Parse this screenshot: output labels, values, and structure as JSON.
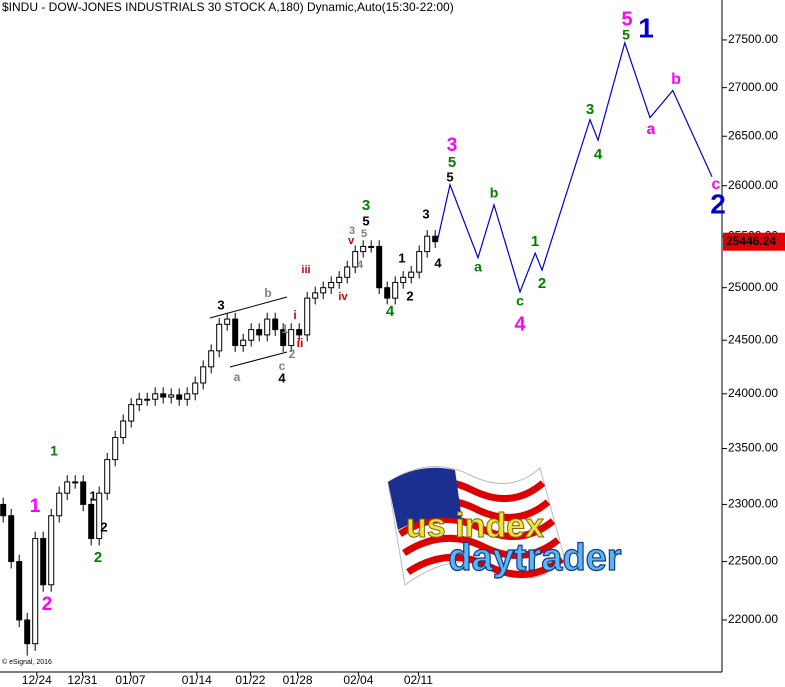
{
  "chart_data": {
    "type": "candlestick",
    "title": "$INDU - DOW-JONES INDUSTRIALS 30 STOCK A,180) Dynamic,Auto(15:30-22:00)",
    "copyright": "© eSignal, 2016",
    "log_scale": true,
    "ylim": [
      21564,
      27926
    ],
    "yticks": [
      {
        "value": 22000,
        "label": "22000.00"
      },
      {
        "value": 22500,
        "label": "22500.00"
      },
      {
        "value": 23000,
        "label": "23000.00"
      },
      {
        "value": 23500,
        "label": "23500.00"
      },
      {
        "value": 24000,
        "label": "24000.00"
      },
      {
        "value": 24500,
        "label": "24500.00"
      },
      {
        "value": 25000,
        "label": "25000.00"
      },
      {
        "value": 25500,
        "label": "25500.00"
      },
      {
        "value": 26000,
        "label": "26000.00"
      },
      {
        "value": 26500,
        "label": "26500.00"
      },
      {
        "value": 27000,
        "label": "27000.00"
      },
      {
        "value": 27500,
        "label": "27500.00"
      }
    ],
    "xlim": [
      -0.4,
      89.85
    ],
    "xticks": [
      {
        "value": 4.2,
        "label": "12/24"
      },
      {
        "value": 9.9,
        "label": "12/31"
      },
      {
        "value": 15.9,
        "label": "01/07"
      },
      {
        "value": 24.2,
        "label": "01/14"
      },
      {
        "value": 30.9,
        "label": "01/22"
      },
      {
        "value": 36.8,
        "label": "01/28"
      },
      {
        "value": 44.4,
        "label": "02/04"
      },
      {
        "value": 51.9,
        "label": "02/11"
      }
    ],
    "candle_color": "#000000",
    "open": [
      23000,
      22900,
      22500,
      22000,
      21800,
      22700,
      22300,
      22900,
      23100,
      23200,
      23200,
      23000,
      22700,
      23100,
      23400,
      23600,
      23750,
      23900,
      23950,
      23950,
      24000,
      23970,
      23990,
      23950,
      24000,
      24100,
      24250,
      24400,
      24650,
      24700,
      24450,
      24500,
      24600,
      24550,
      24700,
      24600,
      24450,
      24600,
      24550,
      24900,
      24950,
      25000,
      25050,
      25100,
      25200,
      25350,
      25400,
      25400,
      25000,
      24900,
      25050,
      25100,
      25150,
      25350,
      25500
    ],
    "high": [
      23060,
      22960,
      22560,
      22060,
      22760,
      22760,
      22960,
      23160,
      23260,
      23260,
      23260,
      23060,
      23160,
      23460,
      23660,
      23810,
      23960,
      24010,
      24010,
      24060,
      24060,
      24050,
      24050,
      24060,
      24160,
      24310,
      24460,
      24710,
      24760,
      24760,
      24560,
      24660,
      24660,
      24760,
      24760,
      24660,
      24660,
      24660,
      24960,
      25010,
      25060,
      25110,
      25160,
      25260,
      25410,
      25460,
      25460,
      25460,
      25060,
      25110,
      25160,
      25210,
      25410,
      25560,
      25560
    ],
    "low": [
      22840,
      22440,
      21940,
      21700,
      21740,
      22240,
      22240,
      22840,
      23040,
      23140,
      22940,
      22640,
      22640,
      23040,
      23340,
      23540,
      23690,
      23840,
      23890,
      23890,
      23910,
      23910,
      23890,
      23890,
      23940,
      24040,
      24190,
      24340,
      24590,
      24390,
      24390,
      24440,
      24490,
      24490,
      24540,
      24390,
      24390,
      24490,
      24490,
      24840,
      24890,
      24940,
      24990,
      25040,
      25140,
      25290,
      25340,
      24940,
      24840,
      24840,
      24990,
      25040,
      25090,
      25290,
      25386
    ],
    "close": [
      22900,
      22500,
      22000,
      21800,
      22700,
      22300,
      22900,
      23100,
      23200,
      23200,
      23000,
      22700,
      23100,
      23400,
      23600,
      23750,
      23900,
      23950,
      23950,
      24000,
      23970,
      23990,
      23950,
      24000,
      24100,
      24250,
      24400,
      24650,
      24700,
      24450,
      24500,
      24600,
      24550,
      24700,
      24600,
      24450,
      24600,
      24550,
      24900,
      24950,
      25000,
      25050,
      25100,
      25200,
      25350,
      25400,
      25400,
      25000,
      24900,
      25050,
      25100,
      25150,
      25350,
      25500,
      25446.24
    ],
    "last_value": 25446.24,
    "projection": {
      "color": "#0000cc",
      "x": [
        54.3,
        55.85,
        59.35,
        61.35,
        64.6,
        66.5,
        67.35,
        73.35,
        74.35,
        77.7,
        80.85,
        83.7,
        88.6
      ],
      "values": [
        25464,
        26010,
        25290,
        25810,
        24960,
        25335,
        25170,
        26670,
        26460,
        27470,
        26690,
        26970,
        26090
      ]
    },
    "annotations": [
      {
        "text": "1",
        "color": "#008000"
      },
      {
        "text": "1",
        "color": "#ff00ff"
      },
      {
        "text": "2",
        "color": "#ff00ff"
      },
      {
        "text": "1",
        "color": "#000000"
      },
      {
        "text": "2",
        "color": "#000000"
      },
      {
        "text": "2",
        "color": "#008000"
      },
      {
        "text": "3",
        "color": "#000000"
      },
      {
        "text": "b",
        "color": "#808080"
      },
      {
        "text": "a",
        "color": "#808080"
      },
      {
        "text": "c",
        "color": "#808080"
      },
      {
        "text": "4",
        "color": "#000000"
      },
      {
        "text": "1",
        "color": "#808080"
      },
      {
        "text": "2",
        "color": "#808080"
      },
      {
        "text": "i",
        "color": "#cc0000"
      },
      {
        "text": "ii",
        "color": "#cc0000"
      },
      {
        "text": "iii",
        "color": "#cc0000"
      },
      {
        "text": "iv",
        "color": "#cc0000"
      },
      {
        "text": "3",
        "color": "#008000"
      },
      {
        "text": "5",
        "color": "#000000"
      },
      {
        "text": "3",
        "color": "#808080"
      },
      {
        "text": "5",
        "color": "#808080"
      },
      {
        "text": "v",
        "color": "#cc0000"
      },
      {
        "text": "4",
        "color": "#808080"
      },
      {
        "text": "4",
        "color": "#008000"
      },
      {
        "text": "1",
        "color": "#000000"
      },
      {
        "text": "2",
        "color": "#000000"
      },
      {
        "text": "3",
        "color": "#000000"
      },
      {
        "text": "4",
        "color": "#000000"
      },
      {
        "text": "3",
        "color": "#ff00ff"
      },
      {
        "text": "5",
        "color": "#008000"
      },
      {
        "text": "5",
        "color": "#000000"
      },
      {
        "text": "a",
        "color": "#008000"
      },
      {
        "text": "b",
        "color": "#008000"
      },
      {
        "text": "c",
        "color": "#008000"
      },
      {
        "text": "4",
        "color": "#ff00ff"
      },
      {
        "text": "1",
        "color": "#008000"
      },
      {
        "text": "2",
        "color": "#008000"
      },
      {
        "text": "3",
        "color": "#008000"
      },
      {
        "text": "4",
        "color": "#008000"
      },
      {
        "text": "5",
        "color": "#ff00ff"
      },
      {
        "text": "5",
        "color": "#008000"
      },
      {
        "text": "1",
        "color": "#0000cc"
      },
      {
        "text": "a",
        "color": "#ff00ff"
      },
      {
        "text": "b",
        "color": "#ff00ff"
      },
      {
        "text": "c",
        "color": "#ff00ff"
      },
      {
        "text": "2",
        "color": "#0000cc"
      }
    ],
    "logo": {
      "line1": "us index",
      "line2": "daytrader"
    }
  }
}
